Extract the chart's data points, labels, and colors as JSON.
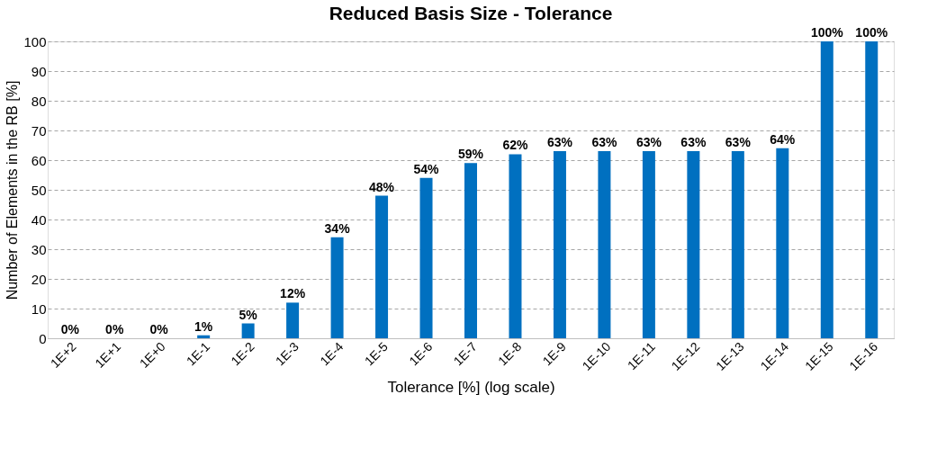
{
  "chart_data": {
    "type": "bar",
    "title": "Reduced Basis Size - Tolerance",
    "xlabel": "Tolerance [%] (log scale)",
    "ylabel": "Number of Elements in the RB [%]",
    "categories": [
      "1E+2",
      "1E+1",
      "1E+0",
      "1E-1",
      "1E-2",
      "1E-3",
      "1E-4",
      "1E-5",
      "1E-6",
      "1E-7",
      "1E-8",
      "1E-9",
      "1E-10",
      "1E-11",
      "1E-12",
      "1E-13",
      "1E-14",
      "1E-15",
      "1E-16"
    ],
    "values": [
      0,
      0,
      0,
      1,
      5,
      12,
      34,
      48,
      54,
      59,
      62,
      63,
      63,
      63,
      63,
      63,
      64,
      100,
      100
    ],
    "value_labels": [
      "0%",
      "0%",
      "0%",
      "1%",
      "5%",
      "12%",
      "34%",
      "48%",
      "54%",
      "59%",
      "62%",
      "63%",
      "63%",
      "63%",
      "63%",
      "63%",
      "64%",
      "100%",
      "100%"
    ],
    "color": "#0070c0",
    "ylim": [
      0,
      100
    ],
    "yticks": [
      0,
      10,
      20,
      30,
      40,
      50,
      60,
      70,
      80,
      90,
      100
    ],
    "grid": "y"
  }
}
